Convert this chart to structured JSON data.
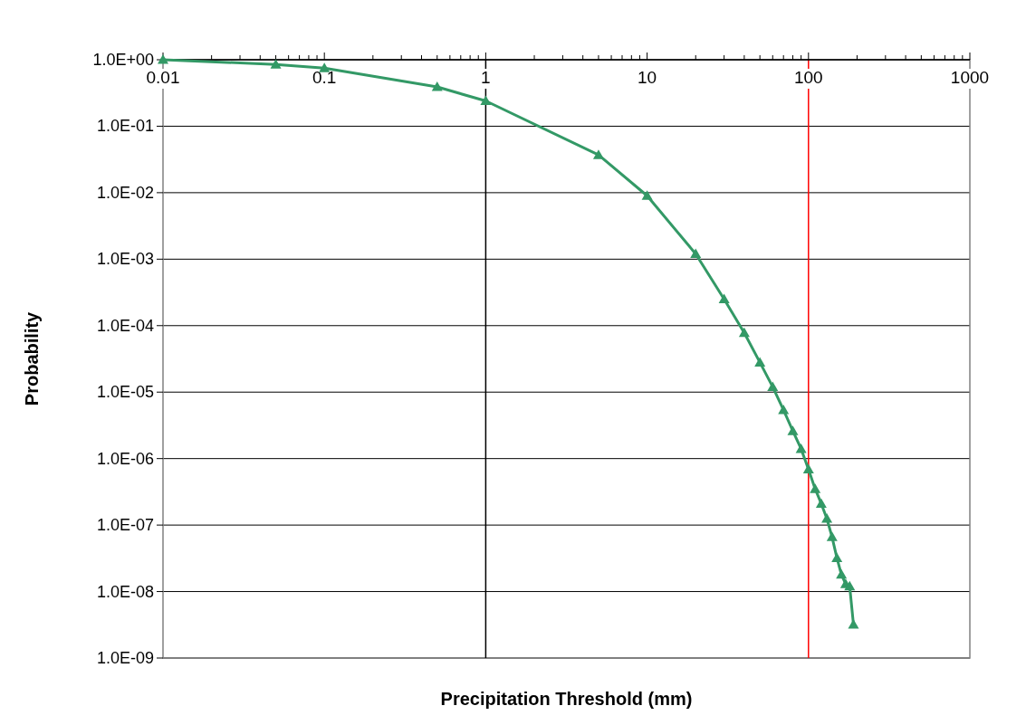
{
  "chart_data": {
    "type": "line",
    "xlabel": "Precipitation Threshold (mm)",
    "ylabel": "Probability",
    "log": "xy",
    "grid": "y",
    "marker": "triangle",
    "line_style": "solid",
    "xlim": [
      0.01,
      1000
    ],
    "ylim": [
      1e-09,
      1
    ],
    "xticks": [
      0.01,
      {
        "value": 0.02,
        "label": null
      },
      {
        "value": 0.03,
        "label": null
      },
      {
        "value": 0.04,
        "label": null
      },
      {
        "value": 0.05,
        "label": null
      },
      {
        "value": 0.06,
        "label": null
      },
      {
        "value": 0.07,
        "label": null
      },
      {
        "value": 0.08,
        "label": null
      },
      {
        "value": 0.09,
        "label": null
      },
      0.1,
      {
        "value": 0.2,
        "label": null
      },
      {
        "value": 0.3,
        "label": null
      },
      {
        "value": 0.4,
        "label": null
      },
      {
        "value": 0.5,
        "label": null
      },
      {
        "value": 0.6,
        "label": null
      },
      {
        "value": 0.7,
        "label": null
      },
      {
        "value": 0.8,
        "label": null
      },
      {
        "value": 0.9,
        "label": null
      },
      1,
      {
        "value": 2,
        "label": null
      },
      {
        "value": 3,
        "label": null
      },
      {
        "value": 4,
        "label": null
      },
      {
        "value": 5,
        "label": null
      },
      {
        "value": 6,
        "label": null
      },
      {
        "value": 7,
        "label": null
      },
      {
        "value": 8,
        "label": null
      },
      {
        "value": 9,
        "label": null
      },
      10,
      {
        "value": 20,
        "label": null
      },
      {
        "value": 30,
        "label": null
      },
      {
        "value": 40,
        "label": null
      },
      {
        "value": 50,
        "label": null
      },
      {
        "value": 60,
        "label": null
      },
      {
        "value": 70,
        "label": null
      },
      {
        "value": 80,
        "label": null
      },
      {
        "value": 90,
        "label": null
      },
      100,
      {
        "value": 200,
        "label": null
      },
      {
        "value": 300,
        "label": null
      },
      {
        "value": 400,
        "label": null
      },
      {
        "value": 500,
        "label": null
      },
      {
        "value": 600,
        "label": null
      },
      {
        "value": 700,
        "label": null
      },
      {
        "value": 800,
        "label": null
      },
      {
        "value": 900,
        "label": null
      },
      1000
    ],
    "yticks": [
      {
        "value": 1,
        "label": "1.0E+00"
      },
      {
        "value": 0.1,
        "label": "1.0E-01"
      },
      {
        "value": 0.01,
        "label": "1.0E-02"
      },
      {
        "value": 0.001,
        "label": "1.0E-03"
      },
      {
        "value": 0.0001,
        "label": "1.0E-04"
      },
      {
        "value": 1e-05,
        "label": "1.0E-05"
      },
      {
        "value": 1e-06,
        "label": "1.0E-06"
      },
      {
        "value": 1e-07,
        "label": "1.0E-07"
      },
      {
        "value": 1e-08,
        "label": "1.0E-08"
      },
      {
        "value": 1e-09,
        "label": "1.0E-09"
      }
    ],
    "ref_lines": [
      {
        "axis": "x",
        "value": 1,
        "color": "#000000"
      },
      {
        "axis": "x",
        "value": 100,
        "color": "#ff0000"
      }
    ],
    "series": [
      {
        "color": "#339966",
        "x": [
          0.01,
          0.05,
          0.1,
          0.5,
          1,
          5,
          10,
          20,
          30,
          40,
          50,
          60,
          70,
          80,
          90,
          100,
          110,
          120,
          130,
          140,
          150,
          160,
          170,
          180,
          190
        ],
        "values": [
          1.0,
          0.85,
          0.75,
          0.39,
          0.24,
          0.037,
          0.009,
          0.0012,
          0.00025,
          7.8e-05,
          2.8e-05,
          1.2e-05,
          5.4e-06,
          2.6e-06,
          1.4e-06,
          6.9e-07,
          3.5e-07,
          2.1e-07,
          1.25e-07,
          6.6e-08,
          3.2e-08,
          1.8e-08,
          1.3e-08,
          1.2e-08,
          3.2e-09
        ]
      }
    ]
  }
}
